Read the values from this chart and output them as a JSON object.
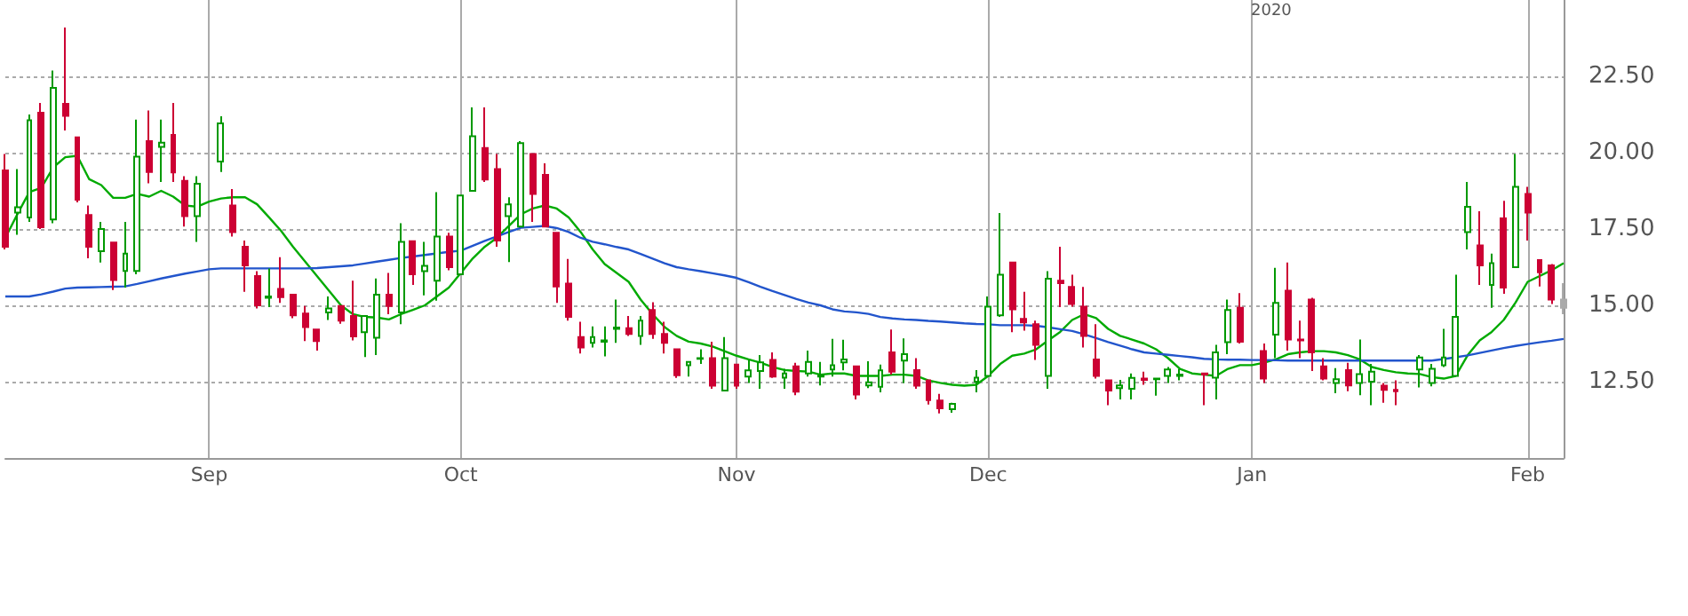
{
  "chart_data": {
    "type": "candlestick",
    "categories": [
      null,
      null,
      null,
      null,
      null,
      null,
      null,
      null,
      null,
      null,
      null,
      null,
      null,
      null,
      null,
      null,
      null,
      "Sep",
      null,
      null,
      null,
      null,
      null,
      null,
      null,
      null,
      null,
      null,
      null,
      null,
      null,
      null,
      null,
      null,
      null,
      null,
      null,
      null,
      "Oct",
      null,
      null,
      null,
      null,
      null,
      null,
      null,
      null,
      null,
      null,
      null,
      null,
      null,
      null,
      null,
      null,
      null,
      null,
      null,
      null,
      null,
      null,
      "Nov",
      null,
      null,
      null,
      null,
      null,
      null,
      null,
      null,
      null,
      null,
      null,
      null,
      null,
      null,
      null,
      null,
      null,
      null,
      null,
      null,
      "Dec",
      null,
      null,
      null,
      null,
      null,
      null,
      null,
      null,
      null,
      null,
      null,
      null,
      null,
      null,
      null,
      null,
      null,
      null,
      null,
      null,
      null,
      "Jan",
      null,
      null,
      null,
      null,
      null,
      null,
      null,
      null,
      null,
      null,
      null,
      null,
      null,
      null,
      null,
      null,
      null,
      null,
      null,
      null,
      null,
      null,
      "Feb",
      null,
      null,
      null
    ],
    "ohlc": [
      [
        19.42,
        19.96,
        16.83,
        16.92
      ],
      [
        18.04,
        19.46,
        17.31,
        18.21
      ],
      [
        17.88,
        21.25,
        17.73,
        21.06
      ],
      [
        21.31,
        21.63,
        17.5,
        17.56
      ],
      [
        17.81,
        22.69,
        17.69,
        22.12
      ],
      [
        21.6,
        24.1,
        20.73,
        21.21
      ],
      [
        20.5,
        20.5,
        18.37,
        18.46
      ],
      [
        17.96,
        18.27,
        16.54,
        16.92
      ],
      [
        16.77,
        17.73,
        16.4,
        17.5
      ],
      [
        17.06,
        17.06,
        15.5,
        15.83
      ],
      [
        16.13,
        17.73,
        15.58,
        16.69
      ],
      [
        16.13,
        21.08,
        16.02,
        19.87
      ],
      [
        20.38,
        21.38,
        19.0,
        19.37
      ],
      [
        20.19,
        21.08,
        19.04,
        20.33
      ],
      [
        20.58,
        21.63,
        19.04,
        19.35
      ],
      [
        19.08,
        19.23,
        17.58,
        17.92
      ],
      [
        17.92,
        19.23,
        17.08,
        18.98
      ],
      null,
      [
        19.71,
        21.19,
        19.37,
        20.96
      ],
      [
        18.27,
        18.81,
        17.25,
        17.4
      ],
      [
        16.92,
        17.12,
        15.44,
        16.31
      ],
      [
        15.96,
        16.12,
        14.9,
        15.0
      ],
      [
        15.25,
        16.21,
        14.94,
        15.29
      ],
      [
        15.54,
        16.58,
        15.08,
        15.27
      ],
      [
        15.35,
        15.35,
        14.58,
        14.67
      ],
      [
        14.73,
        14.98,
        13.83,
        14.29
      ],
      [
        14.21,
        14.21,
        13.52,
        13.83
      ],
      [
        14.77,
        15.29,
        14.52,
        14.9
      ],
      [
        14.98,
        14.98,
        14.4,
        14.5
      ],
      [
        14.65,
        15.81,
        13.85,
        13.98
      ],
      [
        14.12,
        14.65,
        13.31,
        14.65
      ],
      [
        13.94,
        15.88,
        13.37,
        15.35
      ],
      [
        15.35,
        16.06,
        14.71,
        14.98
      ],
      [
        14.77,
        17.69,
        14.38,
        17.08
      ],
      [
        17.1,
        17.1,
        15.67,
        16.02
      ],
      [
        16.12,
        17.08,
        15.33,
        16.29
      ],
      [
        15.81,
        18.71,
        15.15,
        17.25
      ],
      [
        17.25,
        17.38,
        16.15,
        16.25
      ],
      [
        16.02,
        18.6,
        16.02,
        18.6
      ],
      [
        18.75,
        21.48,
        18.75,
        20.54
      ],
      [
        20.15,
        21.48,
        19.04,
        19.12
      ],
      [
        19.46,
        19.96,
        16.92,
        17.12
      ],
      [
        17.92,
        18.54,
        16.42,
        18.31
      ],
      [
        17.58,
        20.38,
        17.58,
        20.31
      ],
      [
        19.96,
        19.96,
        17.73,
        18.65
      ],
      [
        19.27,
        19.65,
        17.58,
        17.58
      ],
      [
        17.38,
        17.38,
        15.08,
        15.62
      ],
      [
        15.71,
        16.52,
        14.5,
        14.62
      ],
      [
        13.96,
        14.46,
        13.42,
        13.62
      ],
      [
        13.77,
        14.31,
        13.62,
        13.96
      ],
      [
        13.81,
        14.31,
        13.33,
        13.85
      ],
      [
        14.23,
        15.19,
        13.77,
        14.27
      ],
      [
        14.25,
        14.65,
        14.0,
        14.06
      ],
      [
        14.0,
        14.65,
        13.71,
        14.5
      ],
      [
        14.85,
        15.1,
        13.9,
        14.06
      ],
      [
        14.06,
        14.46,
        13.42,
        13.77
      ],
      [
        13.56,
        13.56,
        12.62,
        12.71
      ],
      [
        13.04,
        13.15,
        12.67,
        13.15
      ],
      [
        13.25,
        13.56,
        13.08,
        13.27
      ],
      [
        13.27,
        13.81,
        12.27,
        12.37
      ],
      [
        12.21,
        13.96,
        12.21,
        13.27
      ],
      [
        13.06,
        13.06,
        12.27,
        12.37
      ],
      [
        12.67,
        13.21,
        12.46,
        12.87
      ],
      [
        12.85,
        13.37,
        12.27,
        13.13
      ],
      [
        13.21,
        13.46,
        12.62,
        12.67
      ],
      [
        12.63,
        12.92,
        12.27,
        12.77
      ],
      [
        13.0,
        13.12,
        12.06,
        12.17
      ],
      [
        12.77,
        13.52,
        12.67,
        13.15
      ],
      [
        12.67,
        13.15,
        12.38,
        12.71
      ],
      [
        12.9,
        13.9,
        12.67,
        13.04
      ],
      [
        13.13,
        13.87,
        12.87,
        13.23
      ],
      [
        13.0,
        13.0,
        11.92,
        12.08
      ],
      [
        12.38,
        13.17,
        12.29,
        12.48
      ],
      [
        12.33,
        13.06,
        12.15,
        12.87
      ],
      [
        13.46,
        14.21,
        12.73,
        12.83
      ],
      [
        13.19,
        13.92,
        12.46,
        13.4
      ],
      [
        12.88,
        13.27,
        12.27,
        12.37
      ],
      [
        12.54,
        12.54,
        11.75,
        11.9
      ],
      [
        11.88,
        12.1,
        11.46,
        11.63
      ],
      [
        11.6,
        11.81,
        11.48,
        11.77
      ],
      null,
      [
        12.5,
        12.88,
        12.15,
        12.63
      ],
      [
        12.69,
        15.29,
        12.69,
        14.96
      ],
      [
        14.67,
        18.02,
        14.62,
        16.0
      ],
      [
        16.4,
        16.4,
        14.12,
        14.87
      ],
      [
        14.56,
        15.44,
        14.17,
        14.44
      ],
      [
        14.38,
        14.5,
        13.21,
        13.71
      ],
      [
        12.69,
        16.12,
        12.27,
        15.87
      ],
      [
        15.81,
        16.92,
        14.94,
        15.73
      ],
      [
        15.6,
        16.0,
        14.96,
        15.04
      ],
      [
        14.96,
        15.6,
        13.62,
        14.0
      ],
      [
        13.23,
        14.38,
        12.6,
        12.69
      ],
      [
        12.54,
        12.54,
        11.73,
        12.21
      ],
      [
        12.29,
        12.56,
        11.92,
        12.38
      ],
      [
        12.27,
        12.77,
        11.92,
        12.62
      ],
      [
        12.6,
        12.83,
        12.4,
        12.56
      ],
      [
        12.58,
        12.6,
        12.04,
        12.6
      ],
      [
        12.69,
        12.98,
        12.46,
        12.9
      ],
      [
        12.69,
        12.92,
        12.54,
        12.73
      ],
      null,
      [
        12.77,
        12.77,
        11.73,
        12.73
      ],
      [
        12.63,
        13.71,
        11.92,
        13.46
      ],
      [
        13.79,
        15.19,
        13.4,
        14.85
      ],
      [
        14.92,
        15.4,
        13.75,
        13.81
      ],
      null,
      [
        13.5,
        13.75,
        12.46,
        12.6
      ],
      [
        14.04,
        16.23,
        13.27,
        15.08
      ],
      [
        15.48,
        16.4,
        13.52,
        13.88
      ],
      [
        13.88,
        14.5,
        13.27,
        13.85
      ],
      [
        15.19,
        15.25,
        12.85,
        13.46
      ],
      [
        13.0,
        13.27,
        12.54,
        12.6
      ],
      [
        12.46,
        12.94,
        12.12,
        12.58
      ],
      [
        12.88,
        13.12,
        12.19,
        12.38
      ],
      [
        12.46,
        13.88,
        12.06,
        12.75
      ],
      [
        12.5,
        13.08,
        11.73,
        12.83
      ],
      [
        12.37,
        12.46,
        11.81,
        12.23
      ],
      [
        12.23,
        12.54,
        11.73,
        12.19
      ],
      null,
      [
        12.9,
        13.37,
        12.31,
        13.29
      ],
      [
        12.46,
        13.08,
        12.35,
        12.92
      ],
      [
        13.04,
        14.23,
        12.98,
        13.29
      ],
      [
        12.69,
        16.0,
        12.69,
        14.62
      ],
      [
        17.4,
        19.04,
        16.83,
        18.23
      ],
      [
        16.96,
        18.08,
        15.67,
        16.31
      ],
      [
        15.67,
        16.69,
        14.92,
        16.38
      ],
      [
        17.85,
        18.42,
        15.38,
        15.58
      ],
      [
        16.25,
        19.96,
        16.25,
        18.88
      ],
      [
        18.65,
        18.88,
        17.12,
        18.04
      ],
      [
        16.48,
        16.5,
        15.62,
        16.08
      ],
      [
        16.31,
        16.35,
        15.04,
        15.19
      ],
      [
        15.19,
        15.73,
        14.71,
        14.92
      ]
    ],
    "colors": [
      "#cc0033",
      "#009900",
      "#009900",
      "#cc0033",
      "#009900",
      "#cc0033",
      "#cc0033",
      "#cc0033",
      "#009900",
      "#cc0033",
      "#009900",
      "#009900",
      "#cc0033",
      "#009900",
      "#cc0033",
      "#cc0033",
      "#009900",
      null,
      "#009900",
      "#cc0033",
      "#cc0033",
      "#cc0033",
      "#009900",
      "#cc0033",
      "#cc0033",
      "#cc0033",
      "#cc0033",
      "#009900",
      "#cc0033",
      "#cc0033",
      "#009900",
      "#009900",
      "#cc0033",
      "#009900",
      "#cc0033",
      "#009900",
      "#009900",
      "#cc0033",
      "#009900",
      "#009900",
      "#cc0033",
      "#cc0033",
      "#009900",
      "#009900",
      "#cc0033",
      "#cc0033",
      "#cc0033",
      "#cc0033",
      "#cc0033",
      "#009900",
      "#009900",
      "#009900",
      "#cc0033",
      "#009900",
      "#cc0033",
      "#cc0033",
      "#cc0033",
      "#009900",
      "#009900",
      "#cc0033",
      "#009900",
      "#cc0033",
      "#009900",
      "#009900",
      "#cc0033",
      "#009900",
      "#cc0033",
      "#009900",
      "#009900",
      "#009900",
      "#009900",
      "#cc0033",
      "#009900",
      "#009900",
      "#cc0033",
      "#009900",
      "#cc0033",
      "#cc0033",
      "#cc0033",
      "#009900",
      null,
      "#009900",
      "#009900",
      "#009900",
      "#cc0033",
      "#cc0033",
      "#cc0033",
      "#009900",
      "#cc0033",
      "#cc0033",
      "#cc0033",
      "#cc0033",
      "#cc0033",
      "#009900",
      "#009900",
      "#cc0033",
      "#009900",
      "#009900",
      "#009900",
      null,
      "#cc0033",
      "#009900",
      "#009900",
      "#cc0033",
      null,
      "#cc0033",
      "#009900",
      "#cc0033",
      "#cc0033",
      "#cc0033",
      "#cc0033",
      "#009900",
      "#cc0033",
      "#009900",
      "#009900",
      "#cc0033",
      "#cc0033",
      null,
      "#009900",
      "#009900",
      "#009900",
      "#009900",
      "#009900",
      "#cc0033",
      "#009900",
      "#cc0033",
      "#009900",
      "#cc0033",
      "#cc0033",
      "#cc0033",
      "#aaaaaa"
    ],
    "series": [
      {
        "type": "line",
        "color": "#00aa00",
        "values": [
          17.21,
          17.98,
          18.71,
          18.85,
          19.52,
          19.85,
          19.9,
          19.13,
          18.94,
          18.52,
          18.52,
          18.65,
          18.56,
          18.75,
          18.56,
          18.27,
          18.23,
          18.4,
          18.5,
          18.54,
          18.54,
          18.31,
          17.88,
          17.44,
          16.92,
          16.44,
          15.96,
          15.48,
          15.0,
          14.71,
          14.62,
          14.6,
          14.54,
          14.71,
          14.85,
          15.0,
          15.29,
          15.58,
          16.06,
          16.54,
          16.92,
          17.21,
          17.6,
          17.98,
          18.17,
          18.27,
          18.17,
          17.88,
          17.4,
          16.83,
          16.35,
          16.06,
          15.77,
          15.19,
          14.71,
          14.29,
          14.0,
          13.81,
          13.75,
          13.65,
          13.5,
          13.35,
          13.23,
          13.12,
          12.98,
          12.88,
          12.85,
          12.83,
          12.73,
          12.77,
          12.77,
          12.69,
          12.69,
          12.69,
          12.73,
          12.73,
          12.69,
          12.54,
          12.46,
          12.4,
          12.37,
          12.4,
          12.69,
          13.08,
          13.35,
          13.42,
          13.56,
          13.85,
          14.13,
          14.52,
          14.71,
          14.58,
          14.23,
          14.0,
          13.88,
          13.75,
          13.56,
          13.27,
          12.92,
          12.77,
          12.73,
          12.69,
          12.92,
          13.04,
          13.04,
          13.12,
          13.23,
          13.4,
          13.46,
          13.5,
          13.5,
          13.46,
          13.37,
          13.23,
          12.98,
          12.88,
          12.81,
          12.77,
          12.75,
          12.65,
          12.6,
          12.69,
          13.37,
          13.85,
          14.13,
          14.52,
          15.1,
          15.77,
          15.96,
          16.15,
          16.38
        ]
      },
      {
        "type": "line",
        "color": "#2255cc",
        "values": [
          15.29,
          15.29,
          15.29,
          15.36,
          15.45,
          15.55,
          15.58,
          15.59,
          15.6,
          15.61,
          15.62,
          15.7,
          15.79,
          15.88,
          15.96,
          16.04,
          16.11,
          16.18,
          16.21,
          16.21,
          16.21,
          16.21,
          16.21,
          16.21,
          16.21,
          16.21,
          16.22,
          16.25,
          16.28,
          16.31,
          16.37,
          16.43,
          16.49,
          16.55,
          16.6,
          16.65,
          16.7,
          16.75,
          16.79,
          16.95,
          17.11,
          17.26,
          17.4,
          17.54,
          17.57,
          17.6,
          17.53,
          17.4,
          17.21,
          17.08,
          17.0,
          16.91,
          16.83,
          16.68,
          16.53,
          16.38,
          16.25,
          16.18,
          16.12,
          16.05,
          15.98,
          15.9,
          15.76,
          15.61,
          15.47,
          15.34,
          15.21,
          15.09,
          15.0,
          14.87,
          14.8,
          14.77,
          14.72,
          14.62,
          14.57,
          14.54,
          14.52,
          14.49,
          14.47,
          14.44,
          14.41,
          14.39,
          14.38,
          14.35,
          14.35,
          14.35,
          14.33,
          14.28,
          14.22,
          14.16,
          14.05,
          13.93,
          13.8,
          13.68,
          13.56,
          13.46,
          13.42,
          13.38,
          13.34,
          13.3,
          13.25,
          13.23,
          13.22,
          13.22,
          13.21,
          13.21,
          13.2,
          13.19,
          13.19,
          13.19,
          13.19,
          13.19,
          13.19,
          13.19,
          13.19,
          13.19,
          13.19,
          13.19,
          13.19,
          13.19,
          13.24,
          13.3,
          13.36,
          13.44,
          13.52,
          13.6,
          13.67,
          13.73,
          13.79,
          13.84,
          13.9
        ]
      }
    ],
    "ylim": [
      10,
      25
    ],
    "yticks": [
      {
        "value": 12.5,
        "label": "12.50"
      },
      {
        "value": 15,
        "label": "15.00"
      },
      {
        "value": 17.5,
        "label": "17.50"
      },
      {
        "value": 20,
        "label": "20.00"
      },
      {
        "value": 22.5,
        "label": "22.50"
      }
    ],
    "grid": true,
    "annotations": [
      "2020"
    ]
  }
}
